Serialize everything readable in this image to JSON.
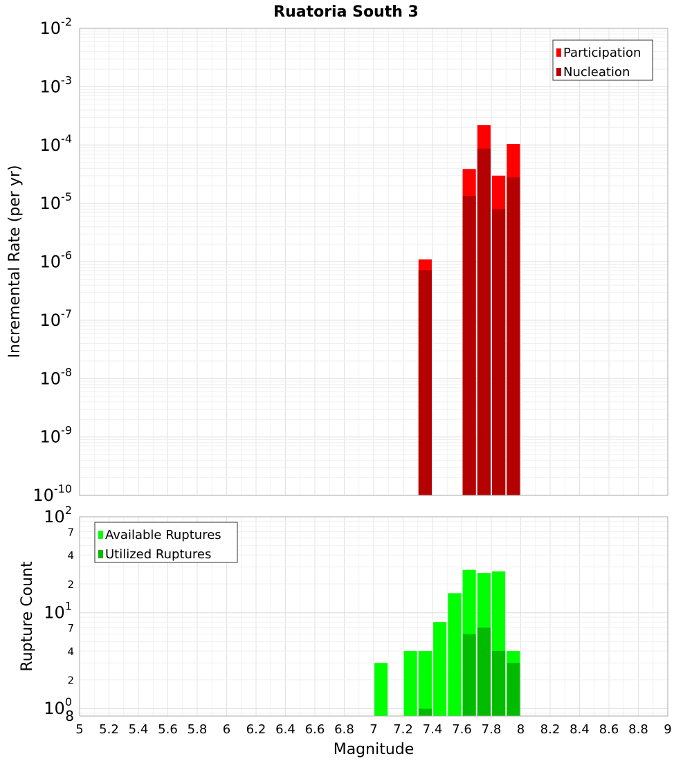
{
  "chart_data": [
    {
      "type": "bar",
      "title": "Ruatoria South 3",
      "xlabel": "",
      "ylabel": "Incremental Rate (per yr)",
      "yscale": "log",
      "xlim": [
        5,
        9
      ],
      "ylim": [
        1e-10,
        0.01
      ],
      "y_ticks": [
        {
          "base": "10",
          "exp": "-10",
          "value": 1e-10
        },
        {
          "base": "10",
          "exp": "-9",
          "value": 1e-09
        },
        {
          "base": "10",
          "exp": "-8",
          "value": 1e-08
        },
        {
          "base": "10",
          "exp": "-7",
          "value": 1e-07
        },
        {
          "base": "10",
          "exp": "-6",
          "value": 1e-06
        },
        {
          "base": "10",
          "exp": "-5",
          "value": 1e-05
        },
        {
          "base": "10",
          "exp": "-4",
          "value": 0.0001
        },
        {
          "base": "10",
          "exp": "-3",
          "value": 0.001
        },
        {
          "base": "10",
          "exp": "-2",
          "value": 0.01
        }
      ],
      "legend_position": "top-right",
      "bar_width": 0.09,
      "series": [
        {
          "name": "Participation",
          "color": "#ff0000",
          "x": [
            7.35,
            7.65,
            7.75,
            7.85,
            7.95
          ],
          "values": [
            1.1e-06,
            3.9e-05,
            0.00022,
            3e-05,
            0.000105
          ]
        },
        {
          "name": "Nucleation",
          "color": "#b40000",
          "x": [
            7.35,
            7.65,
            7.75,
            7.85,
            7.95
          ],
          "values": [
            7.2e-07,
            1.35e-05,
            8.7e-05,
            8e-06,
            2.8e-05
          ]
        }
      ]
    },
    {
      "type": "bar",
      "title": "",
      "xlabel": "Magnitude",
      "ylabel": "Rupture Count",
      "yscale": "log",
      "xlim": [
        5,
        9
      ],
      "ylim": [
        0.84,
        100
      ],
      "x_ticks": [
        "5",
        "5.2",
        "5.4",
        "5.6",
        "5.8",
        "6",
        "6.2",
        "6.4",
        "6.6",
        "6.8",
        "7",
        "7.2",
        "7.4",
        "7.6",
        "7.8",
        "8",
        "8.2",
        "8.4",
        "8.6",
        "8.8",
        "9"
      ],
      "y_ticks": [
        {
          "base": "10",
          "exp": "0",
          "value": 1
        },
        {
          "base": "10",
          "exp": "1",
          "value": 10
        },
        {
          "base": "10",
          "exp": "2",
          "value": 100
        }
      ],
      "y_minor_labels": [
        {
          "label": "8",
          "value": 0.8
        },
        {
          "label": "2",
          "value": 2
        },
        {
          "label": "4",
          "value": 4
        },
        {
          "label": "7",
          "value": 7
        },
        {
          "label": "2",
          "value": 20
        },
        {
          "label": "4",
          "value": 40
        },
        {
          "label": "7",
          "value": 70
        }
      ],
      "legend_position": "top-left",
      "bar_width": 0.09,
      "series": [
        {
          "name": "Available Ruptures",
          "color": "#00ff00",
          "x": [
            7.05,
            7.25,
            7.35,
            7.45,
            7.55,
            7.65,
            7.75,
            7.85,
            7.95
          ],
          "values": [
            3,
            4,
            4,
            8,
            16,
            28,
            26,
            27,
            4
          ]
        },
        {
          "name": "Utilized Ruptures",
          "color": "#00bb00",
          "x": [
            7.35,
            7.65,
            7.75,
            7.85,
            7.95
          ],
          "values": [
            1,
            6,
            7,
            4,
            3
          ]
        }
      ]
    }
  ]
}
